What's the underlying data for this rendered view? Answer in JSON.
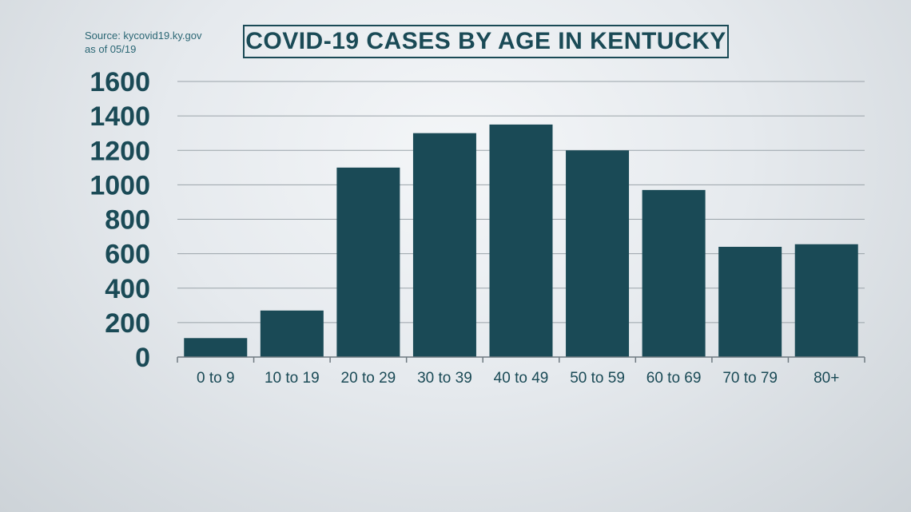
{
  "source": {
    "line1": "Source: kycovid19.ky.gov",
    "line2": "as of 05/19"
  },
  "chart_data": {
    "type": "bar",
    "title": "COVID-19 CASES BY AGE IN KENTUCKY",
    "xlabel": "",
    "ylabel": "",
    "categories": [
      "0 to 9",
      "10 to 19",
      "20 to 29",
      "30 to 39",
      "40 to 49",
      "50 to 59",
      "60 to 69",
      "70 to 79",
      "80+"
    ],
    "values": [
      110,
      270,
      1100,
      1300,
      1350,
      1200,
      970,
      640,
      655
    ],
    "ylim": [
      0,
      1600
    ],
    "yticks": [
      0,
      200,
      400,
      600,
      800,
      1000,
      1200,
      1400,
      1600
    ],
    "grid": true,
    "bar_color": "#1a4a56"
  }
}
